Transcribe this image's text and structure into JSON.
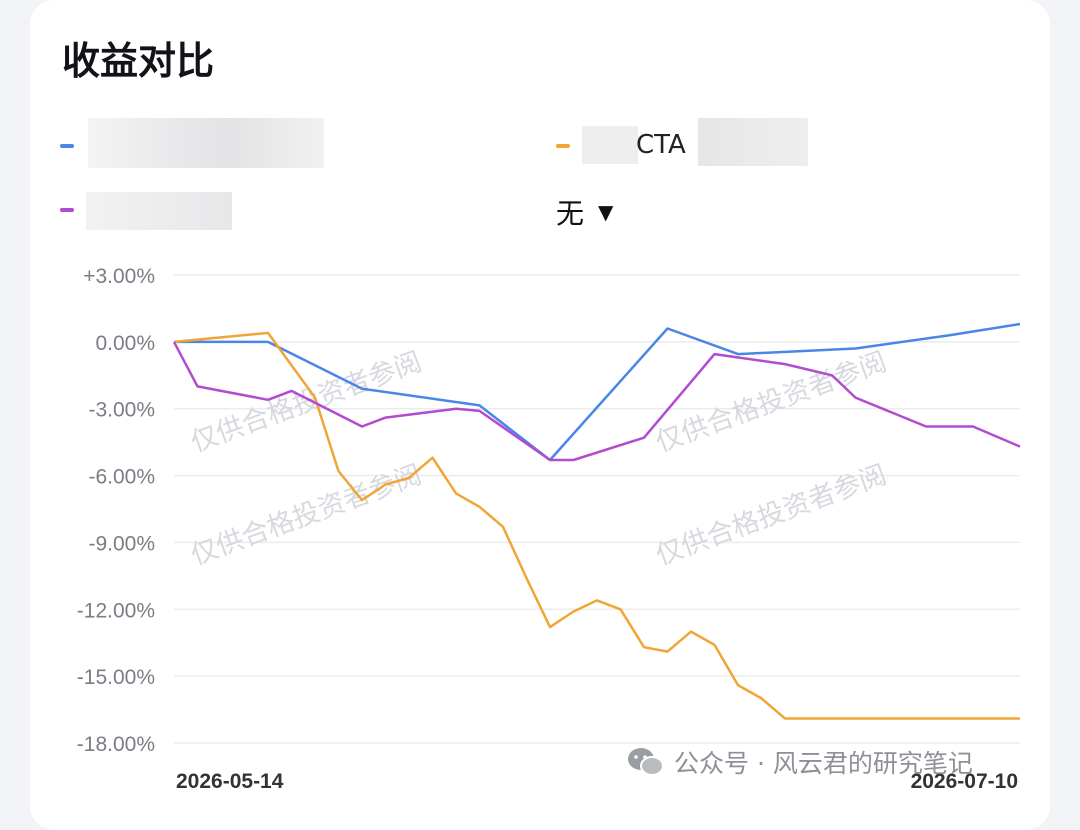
{
  "title": "收益对比",
  "legend": [
    {
      "label": "",
      "color": "#4a86e8"
    },
    {
      "label": "CTA",
      "color": "#f0a535"
    },
    {
      "label": "",
      "color": "#b24bd0"
    }
  ],
  "benchmark_selector": {
    "value": "无"
  },
  "watermark": "仅供合格投资者参阅",
  "footer_watermark": "公众号 · 风云君的研究笔记",
  "chart_data": {
    "type": "line",
    "x_labels": [
      "2026-05-14",
      "2026-07-10"
    ],
    "ylim": [
      -18,
      3
    ],
    "y_ticks": [
      "+3.00%",
      "0.00%",
      "-3.00%",
      "-6.00%",
      "-9.00%",
      "-12.00%",
      "-15.00%",
      "-18.00%"
    ],
    "series": [
      {
        "name": "",
        "color": "#4a86e8",
        "x": [
          0,
          4,
          8,
          13,
          16,
          21,
          24,
          29,
          33,
          36
        ],
        "y": [
          0.0,
          0.0,
          -2.1,
          -2.85,
          -5.3,
          0.6,
          -0.55,
          -0.3,
          0.3,
          0.8
        ]
      },
      {
        "name": "CTA",
        "color": "#f0a535",
        "x": [
          0,
          4,
          6,
          7,
          8,
          9,
          10,
          11,
          12,
          13,
          14,
          15,
          16,
          17,
          18,
          19,
          20,
          21,
          22,
          23,
          24,
          25,
          26,
          27,
          28,
          29,
          30,
          31,
          32,
          33,
          34,
          35,
          36
        ],
        "y": [
          0.0,
          0.4,
          -2.5,
          -5.8,
          -7.1,
          -6.4,
          -6.1,
          -5.2,
          -6.8,
          -7.4,
          -8.3,
          -10.6,
          -12.8,
          -12.1,
          -11.6,
          -12.0,
          -13.7,
          -13.9,
          -13.0,
          -13.6,
          -15.4,
          -16.0,
          -16.9,
          -16.9,
          -16.9,
          -16.9,
          -16.9,
          -16.9,
          -16.9,
          -16.9,
          -16.9,
          -16.9,
          -16.9
        ]
      },
      {
        "name": "",
        "color": "#b24bd0",
        "x": [
          0,
          1,
          4,
          5,
          8,
          9,
          12,
          13,
          16,
          17,
          20,
          23,
          26,
          28,
          29,
          32,
          34,
          36
        ],
        "y": [
          0.0,
          -2.0,
          -2.6,
          -2.2,
          -3.8,
          -3.4,
          -3.0,
          -3.1,
          -5.3,
          -5.3,
          -4.3,
          -0.55,
          -1.0,
          -1.5,
          -2.5,
          -3.8,
          -3.8,
          -4.7
        ]
      }
    ]
  }
}
